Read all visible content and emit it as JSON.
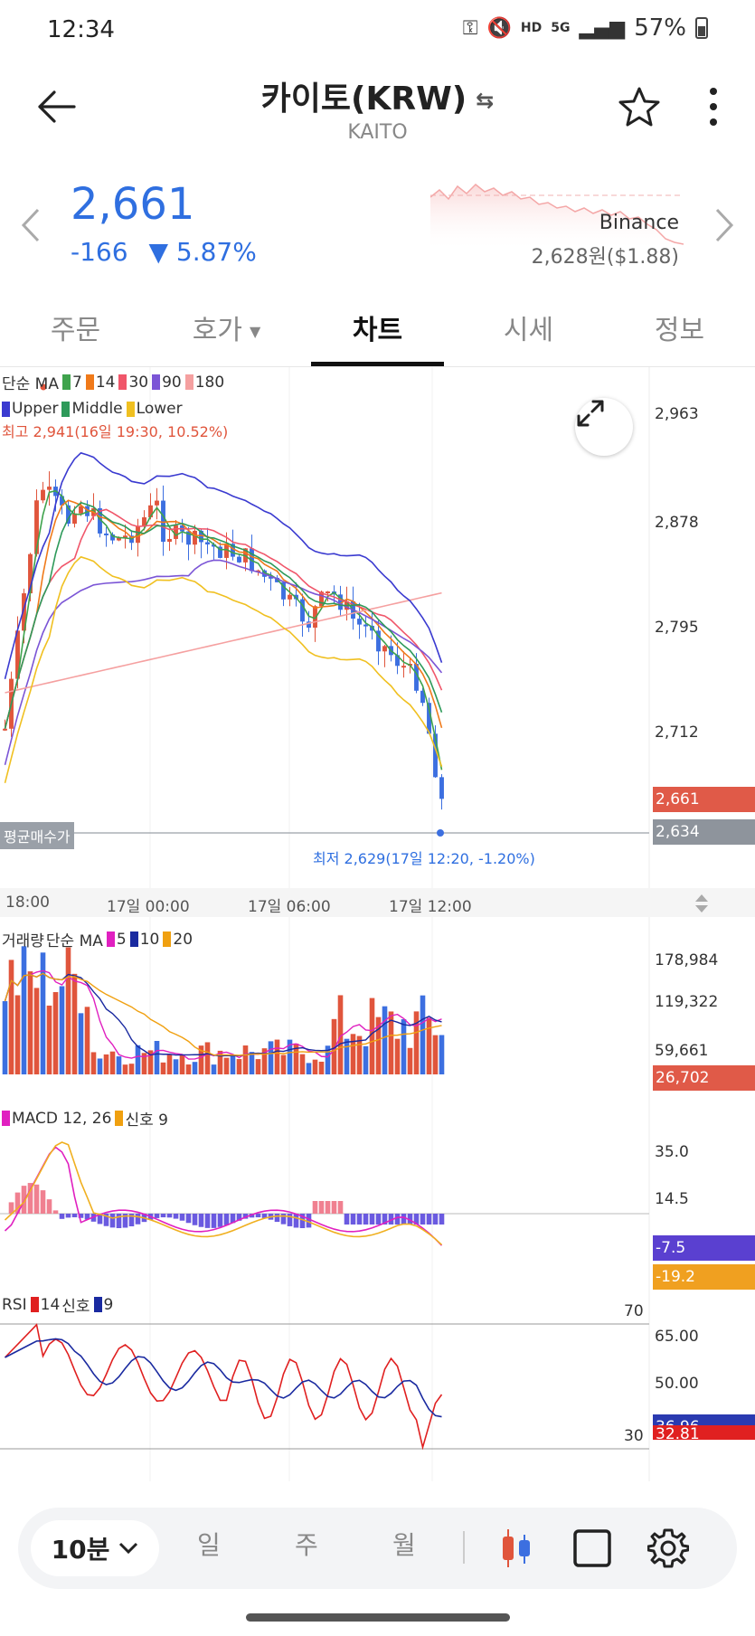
{
  "status_bar": {
    "time": "12:34",
    "battery": "57%"
  },
  "header": {
    "title": "카이토(KRW)",
    "subtitle": "KAITO"
  },
  "price": {
    "current": "2,661",
    "change": "-166",
    "change_pct": "▼ 5.87%"
  },
  "exchange": {
    "name": "Binance",
    "price": "2,628원($1.88)"
  },
  "tabs": [
    {
      "label": "주문",
      "active": false
    },
    {
      "label": "호가",
      "active": false
    },
    {
      "label": "차트",
      "active": true
    },
    {
      "label": "시세",
      "active": false
    },
    {
      "label": "정보",
      "active": false
    }
  ],
  "price_legend": {
    "ma_title": "단순 MA",
    "ma_periods": [
      "7",
      "14",
      "30",
      "90",
      "180"
    ],
    "bb_labels": [
      "Upper",
      "Middle",
      "Lower"
    ]
  },
  "price_axis": [
    "2,963",
    "2,878",
    "2,795",
    "2,712"
  ],
  "price_tags": {
    "current": "2,661",
    "avg": "2,634"
  },
  "annotations": {
    "high": "최고 2,941(16일 19:30, 10.52%)",
    "low": "최저 2,629(17일 12:20, -1.20%)",
    "avg_label": "평균매수가"
  },
  "time_axis": [
    "18:00",
    "17일 00:00",
    "17일 06:00",
    "17일 12:00"
  ],
  "volume": {
    "title": "거래량",
    "ma_title": "단순 MA",
    "ma_periods": [
      "5",
      "10",
      "20"
    ],
    "axis": [
      "178,984",
      "119,322",
      "59,661"
    ],
    "tag": "26,702"
  },
  "macd": {
    "label": "MACD 12, 26",
    "signal_label": "신호 9",
    "axis": [
      "35.0",
      "14.5"
    ],
    "tags": [
      "-7.5",
      "-19.2"
    ]
  },
  "rsi": {
    "label": "RSI",
    "period": "14",
    "signal_label": "신호",
    "signal_period": "9",
    "axis": [
      "65.00",
      "50.00"
    ],
    "levels": [
      "70",
      "30"
    ],
    "tags": [
      "36.96",
      "32.81"
    ]
  },
  "toolbar": {
    "timeframe": "10분",
    "items": [
      "일",
      "주",
      "월"
    ]
  },
  "colors": {
    "up": "#e0553c",
    "down": "#3c6fe0",
    "ma7": "#3fa34d",
    "ma14": "#f07a1a",
    "ma30": "#f0566a",
    "ma90": "#7b55d6",
    "ma180": "#f5a0a0",
    "bb_upper": "#3a3ad0",
    "bb_middle": "#2e9a5a",
    "bb_lower": "#f0c020"
  }
}
